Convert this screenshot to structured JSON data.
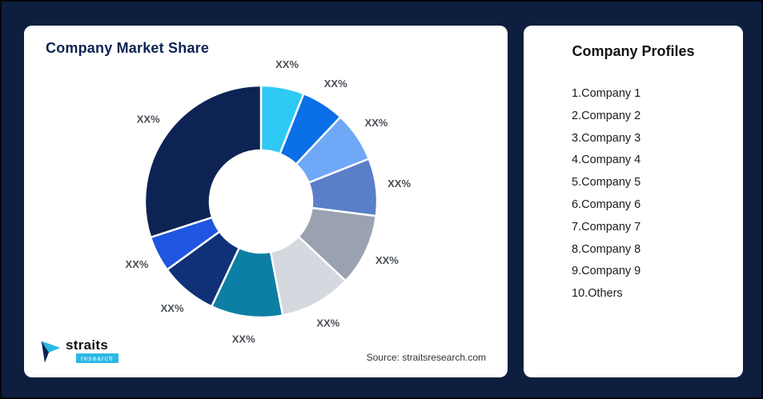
{
  "window": {
    "background": "#0E1E3E"
  },
  "chart_card": {
    "title": "Company Market Share",
    "source_text": "Source: straitsresearch.com"
  },
  "logo": {
    "brand": "straits",
    "sub_brand": "research",
    "accent_color": "#2BB8E6",
    "dark_color": "#0D2353"
  },
  "profiles_card": {
    "title": "Company Profiles",
    "items": [
      "1.Company 1",
      "2.Company 2",
      "3.Company 3",
      "4.Company 4",
      "5.Company 5",
      "6.Company 6",
      "7.Company 7",
      "8.Company 8",
      "9.Company 9",
      "10.Others"
    ]
  },
  "chart_data": {
    "type": "pie",
    "subtype": "donut",
    "title": "Company Market Share",
    "labels": [
      "Company 1",
      "Company 2",
      "Company 3",
      "Company 4",
      "Company 5",
      "Company 6",
      "Company 7",
      "Company 8",
      "Company 9",
      "Others"
    ],
    "display_labels": [
      "XX%",
      "XX%",
      "XX%",
      "XX%",
      "XX%",
      "XX%",
      "XX%",
      "XX%",
      "XX%",
      "XX%"
    ],
    "values": [
      6,
      6,
      7,
      8,
      10,
      10,
      10,
      8,
      5,
      30
    ],
    "colors": [
      "#2EC9F5",
      "#0B6FE8",
      "#6FA8F7",
      "#5B7EC9",
      "#9AA2B1",
      "#D5D9DF",
      "#0E7FA4",
      "#103077",
      "#1F55E0",
      "#0D2353"
    ],
    "start_angle_deg": 0,
    "clockwise": true,
    "inner_radius_ratio": 0.44,
    "gap_stroke_color": "#ffffff",
    "legend": "none",
    "source": "Source: straitsresearch.com"
  }
}
